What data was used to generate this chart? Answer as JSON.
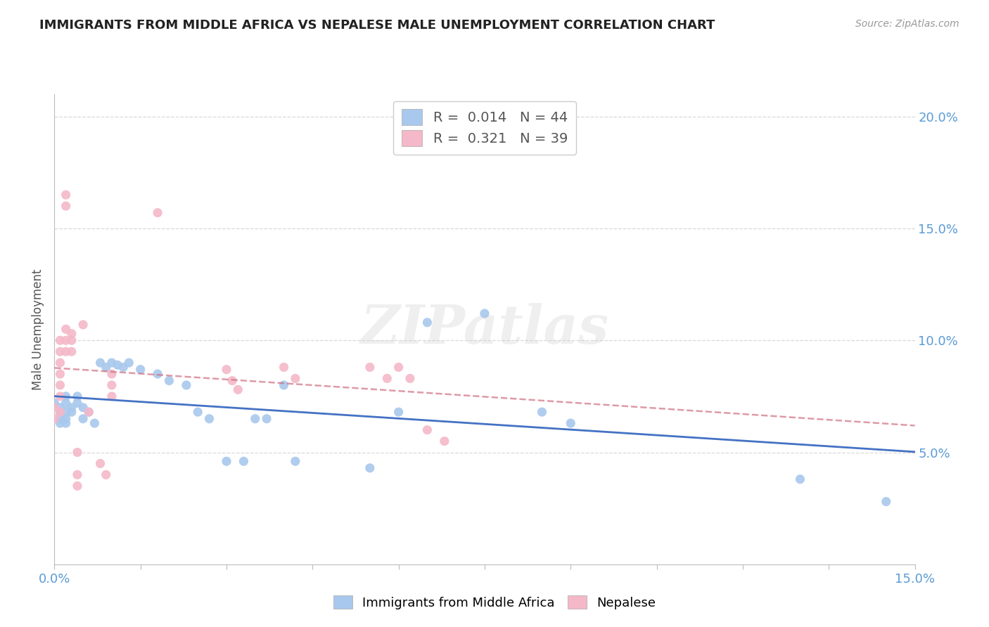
{
  "title": "IMMIGRANTS FROM MIDDLE AFRICA VS NEPALESE MALE UNEMPLOYMENT CORRELATION CHART",
  "source": "Source: ZipAtlas.com",
  "ylabel_label": "Male Unemployment",
  "watermark": "ZIPatlas",
  "xlim": [
    0.0,
    0.15
  ],
  "ylim": [
    0.0,
    0.21
  ],
  "yticks": [
    0.05,
    0.1,
    0.15,
    0.2
  ],
  "blue_color": "#a8c8ed",
  "pink_color": "#f4b8c8",
  "blue_line_color": "#4472c4",
  "pink_line_color": "#d07080",
  "blue_R": 0.014,
  "blue_N": 44,
  "pink_R": 0.321,
  "pink_N": 39,
  "legend_label_blue": "Immigrants from Middle Africa",
  "legend_label_pink": "Nepalese",
  "blue_scatter": [
    [
      0.0,
      0.072
    ],
    [
      0.001,
      0.07
    ],
    [
      0.001,
      0.068
    ],
    [
      0.001,
      0.065
    ],
    [
      0.001,
      0.063
    ],
    [
      0.002,
      0.075
    ],
    [
      0.002,
      0.072
    ],
    [
      0.002,
      0.068
    ],
    [
      0.002,
      0.065
    ],
    [
      0.002,
      0.063
    ],
    [
      0.003,
      0.07
    ],
    [
      0.003,
      0.068
    ],
    [
      0.004,
      0.075
    ],
    [
      0.004,
      0.072
    ],
    [
      0.005,
      0.07
    ],
    [
      0.005,
      0.065
    ],
    [
      0.006,
      0.068
    ],
    [
      0.007,
      0.063
    ],
    [
      0.008,
      0.09
    ],
    [
      0.009,
      0.088
    ],
    [
      0.01,
      0.09
    ],
    [
      0.011,
      0.089
    ],
    [
      0.012,
      0.088
    ],
    [
      0.013,
      0.09
    ],
    [
      0.015,
      0.087
    ],
    [
      0.018,
      0.085
    ],
    [
      0.02,
      0.082
    ],
    [
      0.023,
      0.08
    ],
    [
      0.025,
      0.068
    ],
    [
      0.027,
      0.065
    ],
    [
      0.03,
      0.046
    ],
    [
      0.033,
      0.046
    ],
    [
      0.035,
      0.065
    ],
    [
      0.037,
      0.065
    ],
    [
      0.04,
      0.08
    ],
    [
      0.042,
      0.046
    ],
    [
      0.055,
      0.043
    ],
    [
      0.06,
      0.068
    ],
    [
      0.065,
      0.108
    ],
    [
      0.075,
      0.112
    ],
    [
      0.085,
      0.068
    ],
    [
      0.09,
      0.063
    ],
    [
      0.13,
      0.038
    ],
    [
      0.145,
      0.028
    ]
  ],
  "pink_scatter": [
    [
      0.0,
      0.07
    ],
    [
      0.0,
      0.065
    ],
    [
      0.001,
      0.1
    ],
    [
      0.001,
      0.095
    ],
    [
      0.001,
      0.09
    ],
    [
      0.001,
      0.085
    ],
    [
      0.001,
      0.08
    ],
    [
      0.001,
      0.075
    ],
    [
      0.001,
      0.068
    ],
    [
      0.002,
      0.165
    ],
    [
      0.002,
      0.16
    ],
    [
      0.002,
      0.105
    ],
    [
      0.002,
      0.1
    ],
    [
      0.002,
      0.095
    ],
    [
      0.003,
      0.103
    ],
    [
      0.003,
      0.1
    ],
    [
      0.003,
      0.095
    ],
    [
      0.004,
      0.05
    ],
    [
      0.004,
      0.04
    ],
    [
      0.004,
      0.035
    ],
    [
      0.005,
      0.107
    ],
    [
      0.006,
      0.068
    ],
    [
      0.008,
      0.045
    ],
    [
      0.009,
      0.04
    ],
    [
      0.01,
      0.085
    ],
    [
      0.01,
      0.08
    ],
    [
      0.01,
      0.075
    ],
    [
      0.018,
      0.157
    ],
    [
      0.03,
      0.087
    ],
    [
      0.031,
      0.082
    ],
    [
      0.032,
      0.078
    ],
    [
      0.04,
      0.088
    ],
    [
      0.042,
      0.083
    ],
    [
      0.055,
      0.088
    ],
    [
      0.058,
      0.083
    ],
    [
      0.06,
      0.088
    ],
    [
      0.062,
      0.083
    ],
    [
      0.065,
      0.06
    ],
    [
      0.068,
      0.055
    ]
  ],
  "background_color": "#ffffff",
  "grid_color": "#d8d8d8"
}
